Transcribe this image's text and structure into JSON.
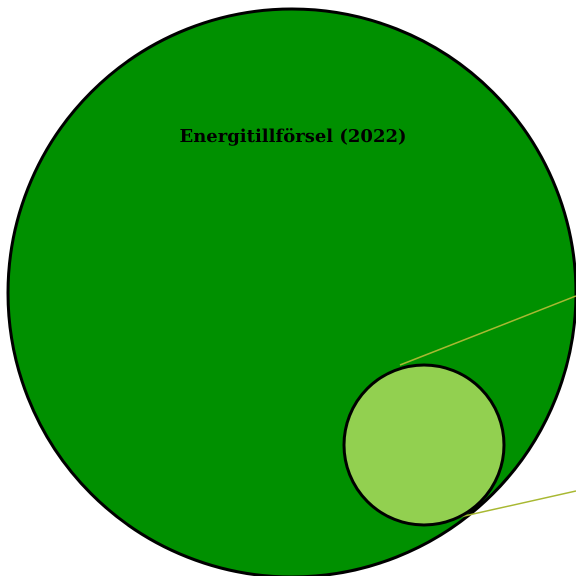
{
  "title": "Energitillförsel (2022)"
}
